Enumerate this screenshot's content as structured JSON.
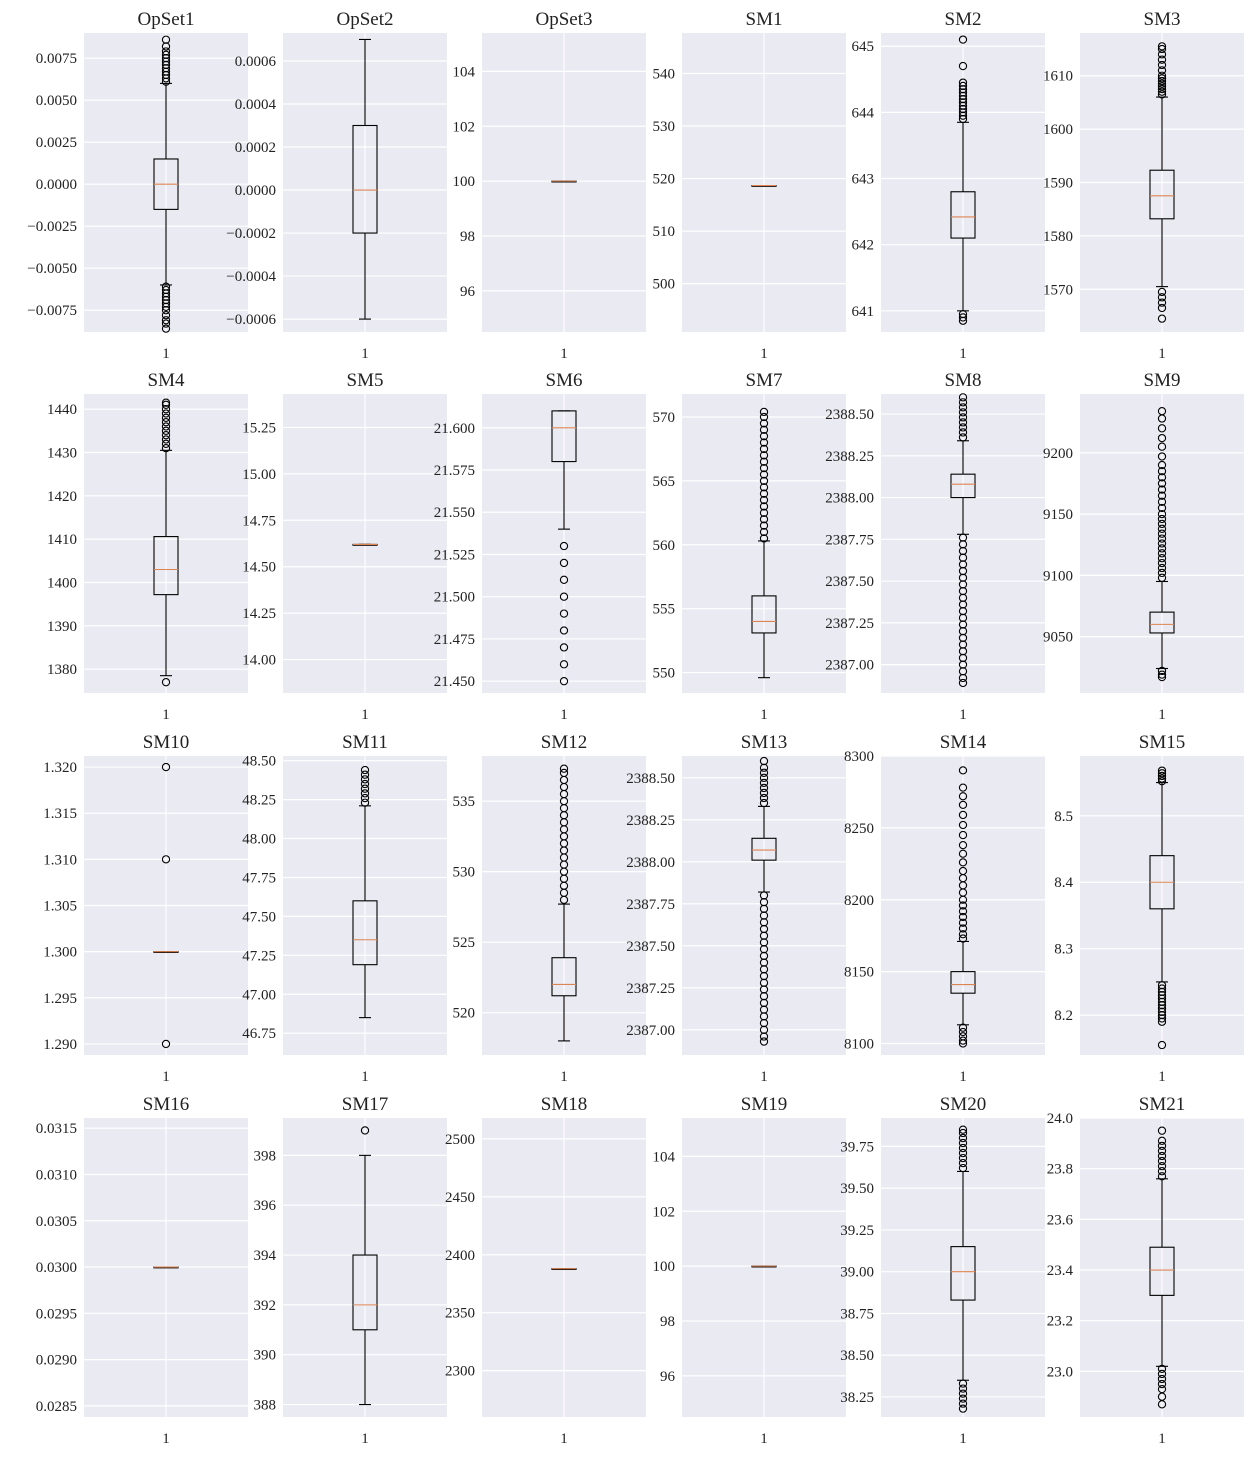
{
  "chart_data": [
    {
      "type": "box",
      "title": "OpSet1",
      "xtick": "1",
      "ylim": [
        -0.0088,
        0.009
      ],
      "yticks": [
        "0.0075",
        "0.0050",
        "0.0025",
        "0.0000",
        "−0.0025",
        "−0.0050",
        "−0.0075"
      ],
      "ytick_values": [
        0.0075,
        0.005,
        0.0025,
        0,
        -0.0025,
        -0.005,
        -0.0075
      ],
      "whisker_low": -0.006,
      "q1": -0.0015,
      "median": 0.0,
      "q3": 0.0015,
      "whisker_high": 0.006,
      "outliers_high": [
        0.0061,
        0.0063,
        0.0065,
        0.0067,
        0.0069,
        0.0071,
        0.0073,
        0.0075,
        0.0077,
        0.0079,
        0.0082,
        0.0086
      ],
      "outliers_low": [
        -0.0061,
        -0.0063,
        -0.0065,
        -0.0067,
        -0.0069,
        -0.0071,
        -0.0073,
        -0.0075,
        -0.0078,
        -0.0081,
        -0.0083,
        -0.0086
      ]
    },
    {
      "type": "box",
      "title": "OpSet2",
      "xtick": "1",
      "ylim": [
        -0.00066,
        0.00073
      ],
      "yticks": [
        "0.0006",
        "0.0004",
        "0.0002",
        "0.0000",
        "−0.0002",
        "−0.0004",
        "−0.0006"
      ],
      "ytick_values": [
        0.0006,
        0.0004,
        0.0002,
        0,
        -0.0002,
        -0.0004,
        -0.0006
      ],
      "whisker_low": -0.0006,
      "q1": -0.0002,
      "median": 0.0,
      "q3": 0.0003,
      "whisker_high": 0.0007,
      "outliers_high": [],
      "outliers_low": []
    },
    {
      "type": "box",
      "title": "OpSet3",
      "xtick": "1",
      "ylim": [
        94.5,
        105.4
      ],
      "yticks": [
        "104",
        "102",
        "100",
        "98",
        "96"
      ],
      "ytick_values": [
        104,
        102,
        100,
        98,
        96
      ],
      "whisker_low": 100,
      "q1": 100,
      "median": 100,
      "q3": 100,
      "whisker_high": 100,
      "outliers_high": [],
      "outliers_low": []
    },
    {
      "type": "box",
      "title": "SM1",
      "xtick": "1",
      "ylim": [
        490.8,
        547.7
      ],
      "yticks": [
        "540",
        "530",
        "520",
        "510",
        "500"
      ],
      "ytick_values": [
        540,
        530,
        520,
        510,
        500
      ],
      "whisker_low": 518.67,
      "q1": 518.67,
      "median": 518.67,
      "q3": 518.67,
      "whisker_high": 518.67,
      "outliers_high": [],
      "outliers_low": []
    },
    {
      "type": "box",
      "title": "SM2",
      "xtick": "1",
      "ylim": [
        640.68,
        645.2
      ],
      "yticks": [
        "645",
        "644",
        "643",
        "642",
        "641"
      ],
      "ytick_values": [
        645,
        644,
        643,
        642,
        641
      ],
      "whisker_low": 641.0,
      "q1": 642.1,
      "median": 642.42,
      "q3": 642.8,
      "whisker_high": 643.85,
      "outliers_high": [
        643.9,
        643.95,
        644.0,
        644.05,
        644.1,
        644.15,
        644.2,
        644.25,
        644.3,
        644.35,
        644.4,
        644.45,
        644.7,
        645.1
      ],
      "outliers_low": [
        640.95,
        640.9,
        640.85
      ]
    },
    {
      "type": "box",
      "title": "SM3",
      "xtick": "1",
      "ylim": [
        1562.0,
        1618.0
      ],
      "yticks": [
        "1610",
        "1600",
        "1590",
        "1580",
        "1570"
      ],
      "ytick_values": [
        1610,
        1600,
        1590,
        1580,
        1570
      ],
      "whisker_low": 1570.5,
      "q1": 1583.2,
      "median": 1587.5,
      "q3": 1592.3,
      "whisker_high": 1606.0,
      "outliers_high": [
        1606.5,
        1607,
        1607.5,
        1608,
        1608.5,
        1609,
        1609.5,
        1610,
        1611,
        1612,
        1613,
        1614,
        1615,
        1615.5
      ],
      "outliers_low": [
        1569.5,
        1568.5,
        1567.5,
        1566.5,
        1564.5
      ]
    },
    {
      "type": "box",
      "title": "SM4",
      "xtick": "1",
      "ylim": [
        1374.5,
        1443.5
      ],
      "yticks": [
        "1440",
        "1430",
        "1420",
        "1410",
        "1400",
        "1390",
        "1380"
      ],
      "ytick_values": [
        1440,
        1430,
        1420,
        1410,
        1400,
        1390,
        1380
      ],
      "whisker_low": 1378.5,
      "q1": 1397.2,
      "median": 1403.0,
      "q3": 1410.6,
      "whisker_high": 1430.5,
      "outliers_high": [
        1431,
        1432,
        1433,
        1434,
        1435,
        1436,
        1437,
        1438,
        1439,
        1440,
        1441,
        1441.5
      ],
      "outliers_low": [
        1377.0
      ]
    },
    {
      "type": "box",
      "title": "SM5",
      "xtick": "1",
      "ylim": [
        13.82,
        15.43
      ],
      "yticks": [
        "15.25",
        "15.00",
        "14.75",
        "14.50",
        "14.25",
        "14.00"
      ],
      "ytick_values": [
        15.25,
        15,
        14.75,
        14.5,
        14.25,
        14
      ],
      "whisker_low": 14.62,
      "q1": 14.62,
      "median": 14.62,
      "q3": 14.62,
      "whisker_high": 14.62,
      "outliers_high": [],
      "outliers_low": []
    },
    {
      "type": "box",
      "title": "SM6",
      "xtick": "1",
      "ylim": [
        21.443,
        21.62
      ],
      "yticks": [
        "21.600",
        "21.575",
        "21.550",
        "21.525",
        "21.500",
        "21.475",
        "21.450"
      ],
      "ytick_values": [
        21.6,
        21.575,
        21.55,
        21.525,
        21.5,
        21.475,
        21.45
      ],
      "whisker_low": 21.54,
      "q1": 21.58,
      "median": 21.6,
      "q3": 21.61,
      "whisker_high": 21.61,
      "outliers_high": [],
      "outliers_low": [
        21.53,
        21.52,
        21.51,
        21.5,
        21.49,
        21.48,
        21.47,
        21.46,
        21.45
      ]
    },
    {
      "type": "box",
      "title": "SM7",
      "xtick": "1",
      "ylim": [
        548.4,
        571.8
      ],
      "yticks": [
        "570",
        "565",
        "560",
        "555",
        "550"
      ],
      "ytick_values": [
        570,
        565,
        560,
        555,
        550
      ],
      "whisker_low": 549.6,
      "q1": 553.1,
      "median": 554.0,
      "q3": 556.0,
      "whisker_high": 560.3,
      "outliers_high": [
        560.5,
        561,
        561.5,
        562,
        562.5,
        563,
        563.5,
        564,
        564.5,
        565,
        565.5,
        566,
        566.5,
        567,
        567.5,
        568,
        568.5,
        569,
        569.5,
        570,
        570.4
      ],
      "outliers_low": []
    },
    {
      "type": "box",
      "title": "SM8",
      "xtick": "1",
      "ylim": [
        2386.83,
        2388.62
      ],
      "yticks": [
        "2388.50",
        "2388.25",
        "2388.00",
        "2387.75",
        "2387.50",
        "2387.25",
        "2387.00"
      ],
      "ytick_values": [
        2388.5,
        2388.25,
        2388,
        2387.75,
        2387.5,
        2387.25,
        2387
      ],
      "whisker_low": 2387.78,
      "q1": 2388.0,
      "median": 2388.08,
      "q3": 2388.14,
      "whisker_high": 2388.34,
      "outliers_high": [
        2388.36,
        2388.39,
        2388.42,
        2388.45,
        2388.48,
        2388.51,
        2388.54,
        2388.57,
        2388.6
      ],
      "outliers_low": [
        2387.76,
        2387.72,
        2387.68,
        2387.64,
        2387.6,
        2387.56,
        2387.52,
        2387.48,
        2387.44,
        2387.4,
        2387.36,
        2387.32,
        2387.28,
        2387.24,
        2387.2,
        2387.16,
        2387.12,
        2387.08,
        2387.04,
        2387.0,
        2386.96,
        2386.92,
        2386.89
      ]
    },
    {
      "type": "box",
      "title": "SM9",
      "xtick": "1",
      "ylim": [
        9004,
        9248
      ],
      "yticks": [
        "9200",
        "9150",
        "9100",
        "9050"
      ],
      "ytick_values": [
        9200,
        9150,
        9100,
        9050
      ],
      "whisker_low": 9024,
      "q1": 9053,
      "median": 9060,
      "q3": 9070,
      "whisker_high": 9095,
      "outliers_high": [
        9098,
        9102,
        9106,
        9110,
        9114,
        9118,
        9122,
        9126,
        9130,
        9134,
        9138,
        9142,
        9146,
        9150,
        9155,
        9160,
        9165,
        9170,
        9175,
        9180,
        9185,
        9190,
        9197,
        9205,
        9212,
        9220,
        9228,
        9234
      ],
      "outliers_low": [
        9022,
        9019,
        9017
      ]
    },
    {
      "type": "box",
      "title": "SM10",
      "xtick": "1",
      "ylim": [
        1.2888,
        1.3212
      ],
      "yticks": [
        "1.320",
        "1.315",
        "1.310",
        "1.305",
        "1.300",
        "1.295",
        "1.290"
      ],
      "ytick_values": [
        1.32,
        1.315,
        1.31,
        1.305,
        1.3,
        1.295,
        1.29
      ],
      "whisker_low": 1.3,
      "q1": 1.3,
      "median": 1.3,
      "q3": 1.3,
      "whisker_high": 1.3,
      "outliers_high": [
        1.31,
        1.32
      ],
      "outliers_low": [
        1.29
      ]
    },
    {
      "type": "box",
      "title": "SM11",
      "xtick": "1",
      "ylim": [
        46.61,
        48.53
      ],
      "yticks": [
        "48.50",
        "48.25",
        "48.00",
        "47.75",
        "47.50",
        "47.25",
        "47.00",
        "46.75"
      ],
      "ytick_values": [
        48.5,
        48.25,
        48,
        47.75,
        47.5,
        47.25,
        47,
        46.75
      ],
      "whisker_low": 46.85,
      "q1": 47.19,
      "median": 47.35,
      "q3": 47.6,
      "whisker_high": 48.21,
      "outliers_high": [
        48.23,
        48.26,
        48.29,
        48.32,
        48.35,
        48.38,
        48.41,
        48.44
      ],
      "outliers_low": []
    },
    {
      "type": "box",
      "title": "SM12",
      "xtick": "1",
      "ylim": [
        517.0,
        538.2
      ],
      "yticks": [
        "535",
        "530",
        "525",
        "520"
      ],
      "ytick_values": [
        535,
        530,
        525,
        520
      ],
      "whisker_low": 518.0,
      "q1": 521.2,
      "median": 522.0,
      "q3": 523.9,
      "whisker_high": 527.7,
      "outliers_high": [
        528,
        528.5,
        529,
        529.5,
        530,
        530.5,
        531,
        531.5,
        532,
        532.5,
        533,
        533.5,
        534,
        534.5,
        535,
        535.5,
        536,
        536.5,
        537,
        537.3
      ],
      "outliers_low": []
    },
    {
      "type": "box",
      "title": "SM13",
      "xtick": "1",
      "ylim": [
        2386.85,
        2388.63
      ],
      "yticks": [
        "2388.50",
        "2388.25",
        "2388.00",
        "2387.75",
        "2387.50",
        "2387.25",
        "2387.00"
      ],
      "ytick_values": [
        2388.5,
        2388.25,
        2388,
        2387.75,
        2387.5,
        2387.25,
        2387
      ],
      "whisker_low": 2387.82,
      "q1": 2388.01,
      "median": 2388.07,
      "q3": 2388.14,
      "whisker_high": 2388.33,
      "outliers_high": [
        2388.35,
        2388.38,
        2388.41,
        2388.44,
        2388.47,
        2388.5,
        2388.53,
        2388.56,
        2388.6
      ],
      "outliers_low": [
        2387.8,
        2387.76,
        2387.72,
        2387.68,
        2387.64,
        2387.6,
        2387.56,
        2387.52,
        2387.48,
        2387.44,
        2387.4,
        2387.36,
        2387.32,
        2387.28,
        2387.24,
        2387.2,
        2387.16,
        2387.12,
        2387.08,
        2387.04,
        2387.0,
        2386.96,
        2386.93
      ]
    },
    {
      "type": "box",
      "title": "SM14",
      "xtick": "1",
      "ylim": [
        8092,
        8300
      ],
      "yticks": [
        "8300",
        "8250",
        "8200",
        "8150",
        "8100"
      ],
      "ytick_values": [
        8300,
        8250,
        8200,
        8150,
        8100
      ],
      "whisker_low": 8113,
      "q1": 8135,
      "median": 8141,
      "q3": 8150,
      "whisker_high": 8171,
      "outliers_high": [
        8173,
        8176,
        8180,
        8184,
        8188,
        8192,
        8196,
        8200,
        8205,
        8210,
        8215,
        8220,
        8226,
        8232,
        8238,
        8245,
        8252,
        8259,
        8266,
        8272,
        8278,
        8290
      ],
      "outliers_low": [
        8111,
        8108,
        8105,
        8102,
        8100
      ]
    },
    {
      "type": "box",
      "title": "SM15",
      "xtick": "1",
      "ylim": [
        8.14,
        8.59
      ],
      "yticks": [
        "8.5",
        "8.4",
        "8.3",
        "8.2"
      ],
      "ytick_values": [
        8.5,
        8.4,
        8.3,
        8.2
      ],
      "whisker_low": 8.25,
      "q1": 8.36,
      "median": 8.4,
      "q3": 8.44,
      "whisker_high": 8.55,
      "outliers_high": [
        8.552,
        8.556,
        8.56,
        8.564,
        8.568
      ],
      "outliers_low": [
        8.245,
        8.24,
        8.235,
        8.23,
        8.225,
        8.22,
        8.215,
        8.21,
        8.205,
        8.2,
        8.195,
        8.19,
        8.155
      ]
    },
    {
      "type": "box",
      "title": "SM16",
      "xtick": "1",
      "ylim": [
        0.02838,
        0.03161
      ],
      "yticks": [
        "0.0315",
        "0.0310",
        "0.0305",
        "0.0300",
        "0.0295",
        "0.0290",
        "0.0285"
      ],
      "ytick_values": [
        0.0315,
        0.031,
        0.0305,
        0.03,
        0.0295,
        0.029,
        0.0285
      ],
      "whisker_low": 0.03,
      "q1": 0.03,
      "median": 0.03,
      "q3": 0.03,
      "whisker_high": 0.03,
      "outliers_high": [],
      "outliers_low": []
    },
    {
      "type": "box",
      "title": "SM17",
      "xtick": "1",
      "ylim": [
        387.5,
        399.5
      ],
      "yticks": [
        "398",
        "396",
        "394",
        "392",
        "390",
        "388"
      ],
      "ytick_values": [
        398,
        396,
        394,
        392,
        390,
        388
      ],
      "whisker_low": 388,
      "q1": 391,
      "median": 392,
      "q3": 394,
      "whisker_high": 398,
      "outliers_high": [
        399
      ],
      "outliers_low": []
    },
    {
      "type": "box",
      "title": "SM18",
      "xtick": "1",
      "ylim": [
        2260,
        2518
      ],
      "yticks": [
        "2500",
        "2450",
        "2400",
        "2350",
        "2300"
      ],
      "ytick_values": [
        2500,
        2450,
        2400,
        2350,
        2300
      ],
      "whisker_low": 2388,
      "q1": 2388,
      "median": 2388,
      "q3": 2388,
      "whisker_high": 2388,
      "outliers_high": [],
      "outliers_low": []
    },
    {
      "type": "box",
      "title": "SM19",
      "xtick": "1",
      "ylim": [
        94.5,
        105.4
      ],
      "yticks": [
        "104",
        "102",
        "100",
        "98",
        "96"
      ],
      "ytick_values": [
        104,
        102,
        100,
        98,
        96
      ],
      "whisker_low": 100,
      "q1": 100,
      "median": 100,
      "q3": 100,
      "whisker_high": 100,
      "outliers_high": [],
      "outliers_low": []
    },
    {
      "type": "box",
      "title": "SM20",
      "xtick": "1",
      "ylim": [
        38.13,
        39.92
      ],
      "yticks": [
        "39.75",
        "39.50",
        "39.25",
        "39.00",
        "38.75",
        "38.50",
        "38.25"
      ],
      "ytick_values": [
        39.75,
        39.5,
        39.25,
        39,
        38.75,
        38.5,
        38.25
      ],
      "whisker_low": 38.35,
      "q1": 38.83,
      "median": 39.0,
      "q3": 39.15,
      "whisker_high": 39.6,
      "outliers_high": [
        39.62,
        39.65,
        39.68,
        39.71,
        39.74,
        39.77,
        39.8,
        39.83,
        39.85
      ],
      "outliers_low": [
        38.33,
        38.3,
        38.27,
        38.24,
        38.21,
        38.18
      ]
    },
    {
      "type": "box",
      "title": "SM21",
      "xtick": "1",
      "ylim": [
        22.82,
        24.0
      ],
      "yticks": [
        "24.0",
        "23.8",
        "23.6",
        "23.4",
        "23.2",
        "23.0"
      ],
      "ytick_values": [
        24,
        23.8,
        23.6,
        23.4,
        23.2,
        23
      ],
      "whisker_low": 23.02,
      "q1": 23.3,
      "median": 23.4,
      "q3": 23.49,
      "whisker_high": 23.76,
      "outliers_high": [
        23.77,
        23.79,
        23.81,
        23.83,
        23.85,
        23.87,
        23.89,
        23.91,
        23.95
      ],
      "outliers_low": [
        23.01,
        22.99,
        22.97,
        22.95,
        22.93,
        22.9,
        22.87
      ]
    }
  ]
}
